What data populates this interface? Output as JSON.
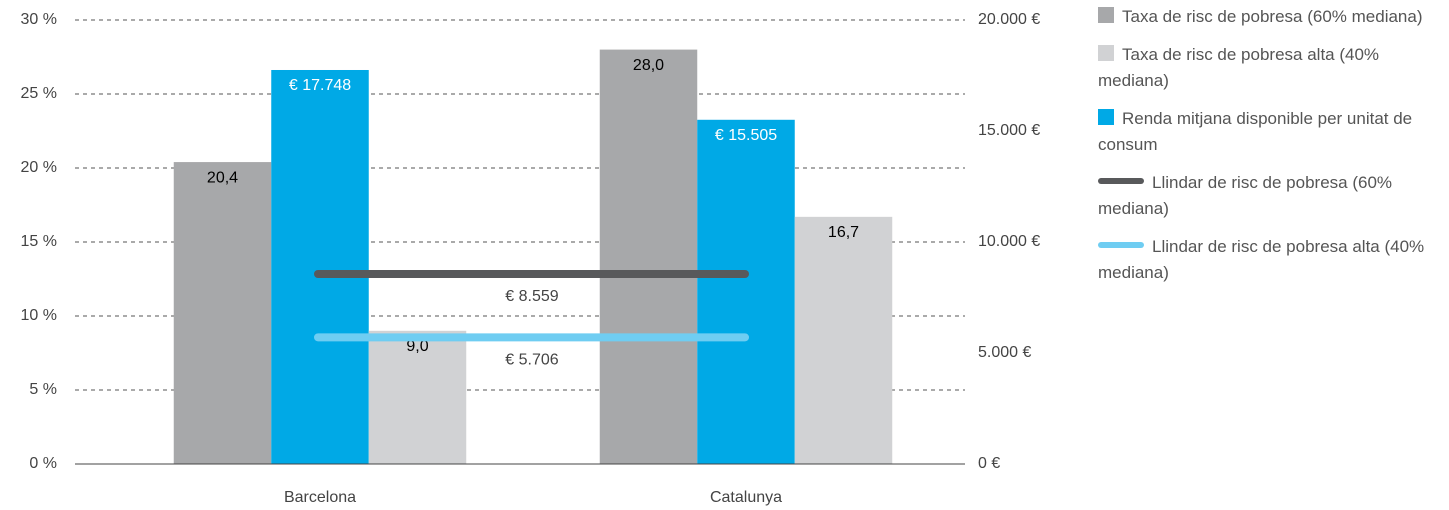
{
  "chart_data": {
    "type": "bar",
    "categories": [
      "Barcelona",
      "Catalunya"
    ],
    "series": [
      {
        "name": "Taxa de risc de pobresa (60% mediana)",
        "color": "#a7a8aa",
        "label_color": "#000000",
        "values": [
          20.4,
          28.0
        ],
        "value_labels": [
          "20,4",
          "28,0"
        ]
      },
      {
        "name": "Renda mitjana disponible per unitat de consum",
        "color": "#00a9e6",
        "label_color": "#ffffff",
        "axis": "y2",
        "values": [
          17748,
          15505
        ],
        "value_labels": [
          "€ 17.748",
          "€ 15.505"
        ]
      },
      {
        "name": "Taxa de risc de pobresa alta (40% mediana)",
        "color": "#d1d2d4",
        "label_color": "#000000",
        "values": [
          9.0,
          16.7
        ],
        "value_labels": [
          "9,0",
          "16,7"
        ]
      }
    ],
    "lines": [
      {
        "name": "Llindar de risc de pobresa (60% mediana)",
        "color": "#58595b",
        "axis": "y2",
        "value": 8559,
        "value_label": "€ 8.559"
      },
      {
        "name": "Llindar de risc de pobresa alta (40% mediana)",
        "color": "#6fcdf2",
        "axis": "y2",
        "value": 5706,
        "value_label": "€ 5.706"
      }
    ],
    "legend_order": [
      0,
      2,
      1
    ],
    "ylim": [
      0,
      30
    ],
    "yticks": [
      {
        "value": 0,
        "label": "0 %"
      },
      {
        "value": 5,
        "label": "5 %"
      },
      {
        "value": 10,
        "label": "10 %"
      },
      {
        "value": 15,
        "label": "15 %"
      },
      {
        "value": 20,
        "label": "20 %"
      },
      {
        "value": 25,
        "label": "25 %"
      },
      {
        "value": 30,
        "label": "30 %"
      }
    ],
    "y2lim": [
      0,
      20000
    ],
    "y2ticks": [
      {
        "value": 0,
        "label": "0 €"
      },
      {
        "value": 5000,
        "label": "5.000 €"
      },
      {
        "value": 10000,
        "label": "10.000 €"
      },
      {
        "value": 15000,
        "label": "15.000 €"
      },
      {
        "value": 20000,
        "label": "20.000 €"
      }
    ],
    "grid": true
  }
}
